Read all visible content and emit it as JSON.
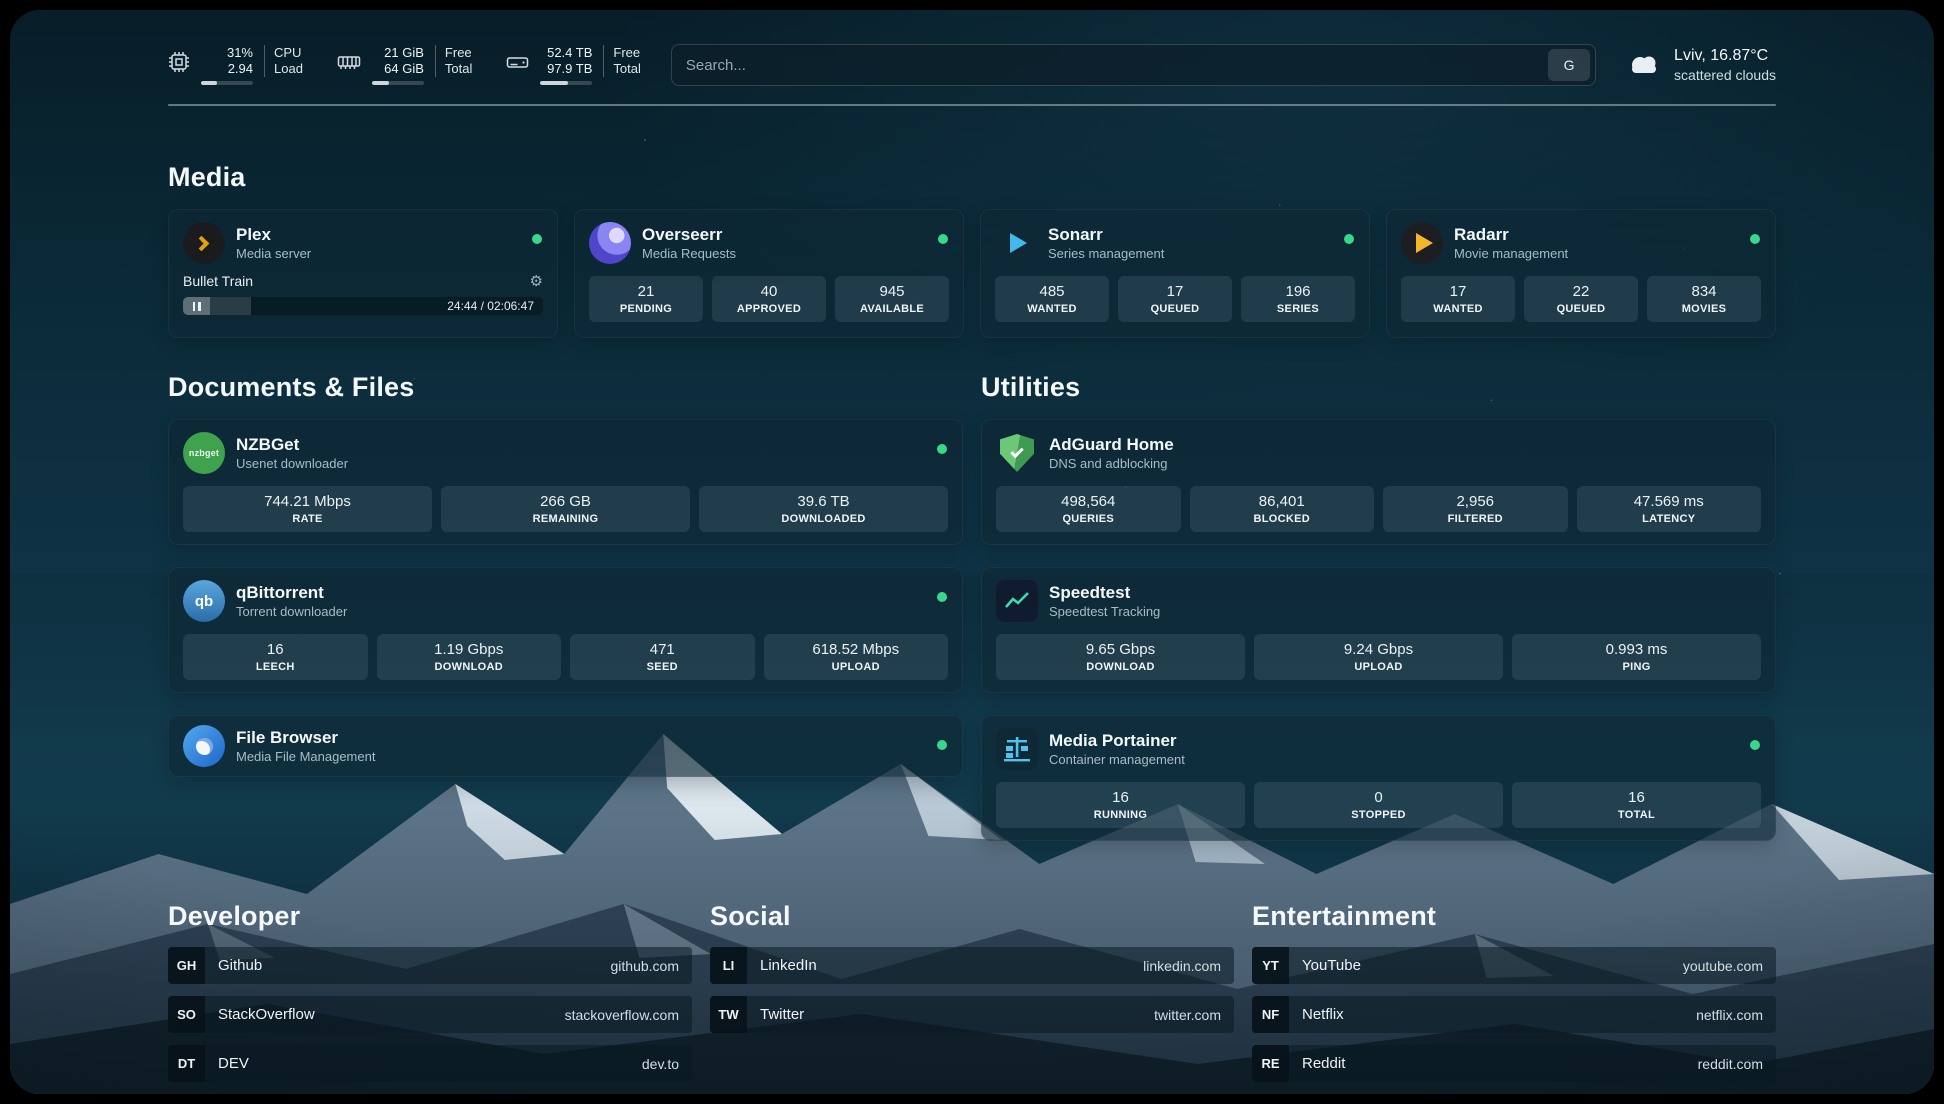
{
  "colors": {
    "online_dot": "#3ad68b",
    "plex_accent": "#e5a00d",
    "overseerr_accent": "#6366f1",
    "sonarr_accent": "#43b9ea",
    "radarr_accent": "#f7b52c",
    "nzbget_accent": "#3fa24c",
    "qbittorrent_accent": "#3d8ec9",
    "filebrowser_accent": "#2f86e0",
    "adguard_accent": "#57b45f",
    "speedtest_accent": "#37e0b0",
    "portainer_accent": "#4fc3ee"
  },
  "header": {
    "cpu": {
      "usage": "31%",
      "load": "2.94",
      "usage_label": "CPU",
      "load_label": "Load",
      "bar_percent": 31
    },
    "memory": {
      "free": "21 GiB",
      "total": "64 GiB",
      "free_label": "Free",
      "total_label": "Total",
      "bar_percent": 33
    },
    "disk": {
      "free": "52.4 TB",
      "total": "97.9 TB",
      "free_label": "Free",
      "total_label": "Total",
      "bar_percent": 53
    },
    "search": {
      "placeholder": "Search...",
      "engine_button": "G"
    },
    "weather": {
      "location": "Lviv, 16.87°C",
      "condition": "scattered clouds"
    }
  },
  "media": {
    "title": "Media",
    "apps": [
      {
        "name": "Plex",
        "desc": "Media server",
        "online": true,
        "player": {
          "now_playing": "Bullet Train",
          "time": "24:44 / 02:06:47",
          "progress_percent": 19
        }
      },
      {
        "name": "Overseerr",
        "desc": "Media Requests",
        "online": true,
        "stats": [
          {
            "value": "21",
            "label": "PENDING"
          },
          {
            "value": "40",
            "label": "APPROVED"
          },
          {
            "value": "945",
            "label": "AVAILABLE"
          }
        ]
      },
      {
        "name": "Sonarr",
        "desc": "Series management",
        "online": true,
        "stats": [
          {
            "value": "485",
            "label": "WANTED"
          },
          {
            "value": "17",
            "label": "QUEUED"
          },
          {
            "value": "196",
            "label": "SERIES"
          }
        ]
      },
      {
        "name": "Radarr",
        "desc": "Movie management",
        "online": true,
        "stats": [
          {
            "value": "17",
            "label": "WANTED"
          },
          {
            "value": "22",
            "label": "QUEUED"
          },
          {
            "value": "834",
            "label": "MOVIES"
          }
        ]
      }
    ]
  },
  "documents": {
    "title": "Documents & Files",
    "apps": [
      {
        "name": "NZBGet",
        "desc": "Usenet downloader",
        "online": true,
        "icon_text": "nzbget",
        "stats": [
          {
            "value": "744.21 Mbps",
            "label": "RATE"
          },
          {
            "value": "266 GB",
            "label": "REMAINING"
          },
          {
            "value": "39.6 TB",
            "label": "DOWNLOADED"
          }
        ]
      },
      {
        "name": "qBittorrent",
        "desc": "Torrent downloader",
        "online": true,
        "icon_text": "qb",
        "stats": [
          {
            "value": "16",
            "label": "LEECH"
          },
          {
            "value": "1.19 Gbps",
            "label": "DOWNLOAD"
          },
          {
            "value": "471",
            "label": "SEED"
          },
          {
            "value": "618.52 Mbps",
            "label": "UPLOAD"
          }
        ]
      },
      {
        "name": "File Browser",
        "desc": "Media File Management",
        "online": true,
        "stats": []
      }
    ]
  },
  "utilities": {
    "title": "Utilities",
    "apps": [
      {
        "name": "AdGuard Home",
        "desc": "DNS and adblocking",
        "online": false,
        "stats": [
          {
            "value": "498,564",
            "label": "QUERIES"
          },
          {
            "value": "86,401",
            "label": "BLOCKED"
          },
          {
            "value": "2,956",
            "label": "FILTERED"
          },
          {
            "value": "47.569 ms",
            "label": "LATENCY"
          }
        ]
      },
      {
        "name": "Speedtest",
        "desc": "Speedtest Tracking",
        "online": false,
        "stats": [
          {
            "value": "9.65 Gbps",
            "label": "DOWNLOAD"
          },
          {
            "value": "9.24 Gbps",
            "label": "UPLOAD"
          },
          {
            "value": "0.993 ms",
            "label": "PING"
          }
        ]
      },
      {
        "name": "Media Portainer",
        "desc": "Container management",
        "online": true,
        "stats": [
          {
            "value": "16",
            "label": "RUNNING"
          },
          {
            "value": "0",
            "label": "STOPPED"
          },
          {
            "value": "16",
            "label": "TOTAL"
          }
        ]
      }
    ]
  },
  "bookmarks": [
    {
      "title": "Developer",
      "items": [
        {
          "abbr": "GH",
          "name": "Github",
          "url": "github.com"
        },
        {
          "abbr": "SO",
          "name": "StackOverflow",
          "url": "stackoverflow.com"
        },
        {
          "abbr": "DT",
          "name": "DEV",
          "url": "dev.to"
        }
      ]
    },
    {
      "title": "Social",
      "items": [
        {
          "abbr": "LI",
          "name": "LinkedIn",
          "url": "linkedin.com"
        },
        {
          "abbr": "TW",
          "name": "Twitter",
          "url": "twitter.com"
        }
      ]
    },
    {
      "title": "Entertainment",
      "items": [
        {
          "abbr": "YT",
          "name": "YouTube",
          "url": "youtube.com"
        },
        {
          "abbr": "NF",
          "name": "Netflix",
          "url": "netflix.com"
        },
        {
          "abbr": "RE",
          "name": "Reddit",
          "url": "reddit.com"
        }
      ]
    }
  ]
}
